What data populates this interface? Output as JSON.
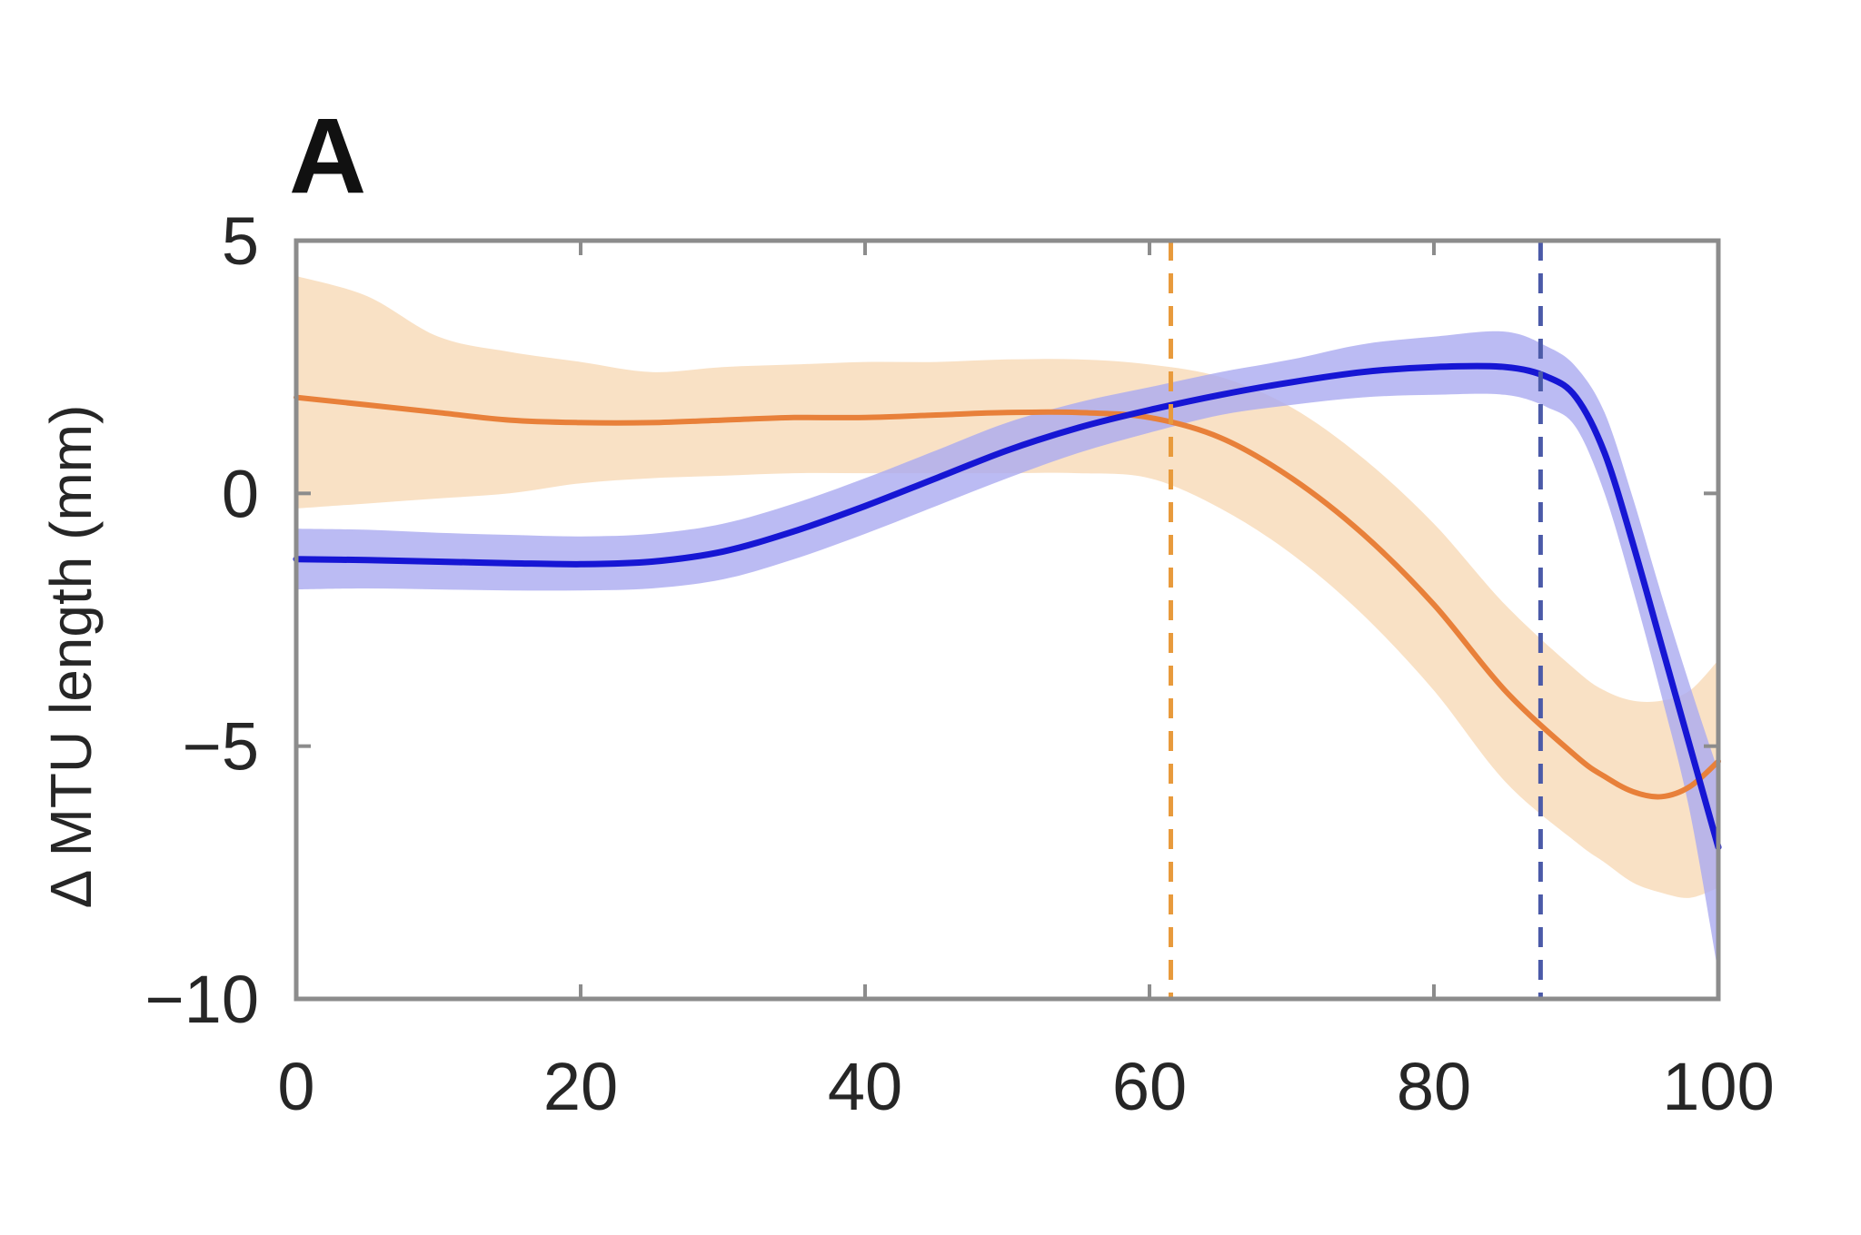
{
  "panel_label": "A",
  "chart_data": {
    "type": "line",
    "title": "",
    "xlabel": "",
    "ylabel": "Δ MTU length (mm)",
    "xlim": [
      0,
      100
    ],
    "ylim": [
      -10,
      5
    ],
    "xticks": [
      0,
      20,
      40,
      60,
      80,
      100
    ],
    "yticks": [
      5,
      0,
      -5,
      -10
    ],
    "xtick_labels": [
      "0",
      "20",
      "40",
      "60",
      "80",
      "100"
    ],
    "ytick_labels": [
      "5",
      "0",
      "−5",
      "−10"
    ],
    "grid": false,
    "legend": "none",
    "series": [
      {
        "color": "#e8803a",
        "band_color": "#f8d9b6",
        "x": [
          0,
          5,
          10,
          15,
          20,
          25,
          30,
          35,
          40,
          45,
          50,
          55,
          60,
          65,
          70,
          75,
          80,
          85,
          90,
          92,
          94,
          96,
          98,
          100
        ],
        "y": [
          1.9,
          1.75,
          1.6,
          1.45,
          1.4,
          1.4,
          1.45,
          1.5,
          1.5,
          1.55,
          1.6,
          1.6,
          1.5,
          1.1,
          0.3,
          -0.8,
          -2.2,
          -3.9,
          -5.2,
          -5.6,
          -5.9,
          -6.0,
          -5.8,
          -5.3
        ],
        "lower": [
          -0.3,
          -0.2,
          -0.1,
          0.0,
          0.2,
          0.3,
          0.35,
          0.4,
          0.4,
          0.4,
          0.4,
          0.4,
          0.3,
          -0.3,
          -1.2,
          -2.4,
          -3.9,
          -5.7,
          -6.9,
          -7.3,
          -7.7,
          -7.9,
          -8.0,
          -7.8
        ],
        "upper": [
          4.3,
          3.9,
          3.1,
          2.8,
          2.6,
          2.4,
          2.5,
          2.55,
          2.6,
          2.6,
          2.65,
          2.65,
          2.55,
          2.3,
          1.7,
          0.7,
          -0.6,
          -2.2,
          -3.5,
          -3.9,
          -4.1,
          -4.1,
          -3.9,
          -3.3
        ]
      },
      {
        "color": "#1616d4",
        "band_color": "#aaaaf0",
        "x": [
          0,
          5,
          10,
          15,
          20,
          25,
          30,
          35,
          40,
          45,
          50,
          55,
          60,
          65,
          70,
          75,
          80,
          85,
          88,
          90,
          92,
          94,
          96,
          98,
          100
        ],
        "y": [
          -1.3,
          -1.32,
          -1.35,
          -1.38,
          -1.4,
          -1.35,
          -1.15,
          -0.75,
          -0.25,
          0.3,
          0.85,
          1.3,
          1.65,
          1.95,
          2.2,
          2.4,
          2.5,
          2.5,
          2.3,
          1.9,
          0.8,
          -1.0,
          -3.0,
          -5.0,
          -7.0
        ],
        "lower": [
          -1.9,
          -1.88,
          -1.9,
          -1.92,
          -1.92,
          -1.88,
          -1.7,
          -1.3,
          -0.8,
          -0.25,
          0.3,
          0.8,
          1.2,
          1.55,
          1.75,
          1.9,
          1.95,
          1.95,
          1.7,
          1.3,
          0.0,
          -1.9,
          -4.0,
          -6.3,
          -9.5
        ],
        "upper": [
          -0.7,
          -0.72,
          -0.78,
          -0.82,
          -0.85,
          -0.8,
          -0.6,
          -0.2,
          0.3,
          0.85,
          1.4,
          1.8,
          2.1,
          2.4,
          2.65,
          2.95,
          3.1,
          3.2,
          2.9,
          2.5,
          1.6,
          -0.1,
          -2.0,
          -3.8,
          -5.5
        ]
      }
    ],
    "vlines": [
      {
        "x": 61.5,
        "color": "#e89a3c",
        "style": "dashed"
      },
      {
        "x": 87.5,
        "color": "#4b5aa8",
        "style": "dashed"
      }
    ]
  }
}
